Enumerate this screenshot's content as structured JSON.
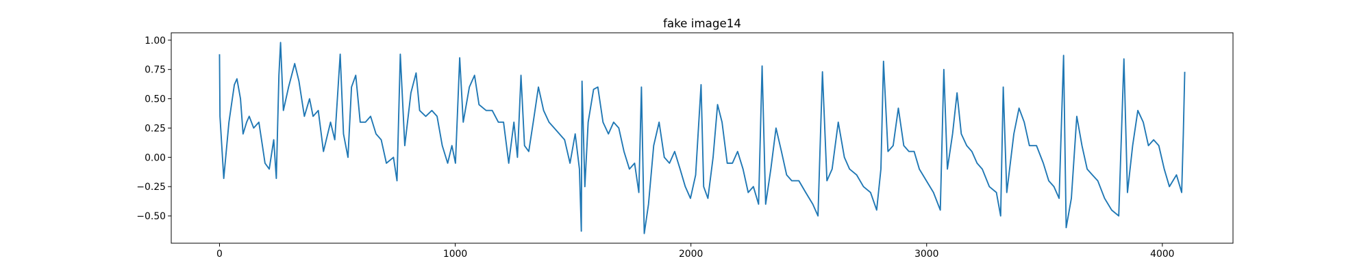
{
  "chart_data": {
    "type": "line",
    "title": "fake image14",
    "color": "#1f77b4",
    "x": [
      0,
      2,
      18,
      40,
      63,
      74,
      89,
      100,
      115,
      126,
      145,
      167,
      182,
      193,
      211,
      230,
      241,
      252,
      259,
      271,
      293,
      319,
      337,
      360,
      382,
      397,
      419,
      441,
      471,
      489,
      512,
      526,
      545,
      560,
      578,
      597,
      619,
      641,
      664,
      686,
      708,
      738,
      753,
      767,
      786,
      812,
      834,
      849,
      875,
      901,
      923,
      945,
      968,
      986,
      1001,
      1019,
      1034,
      1060,
      1082,
      1101,
      1131,
      1157,
      1183,
      1205,
      1227,
      1249,
      1264,
      1279,
      1294,
      1312,
      1331,
      1353,
      1375,
      1398,
      1420,
      1442,
      1464,
      1487,
      1509,
      1527,
      1535,
      1538,
      1550,
      1564,
      1587,
      1605,
      1627,
      1650,
      1672,
      1694,
      1716,
      1739,
      1761,
      1779,
      1790,
      1802,
      1820,
      1842,
      1865,
      1887,
      1909,
      1931,
      1954,
      1976,
      1998,
      2020,
      2043,
      2054,
      2072,
      2094,
      2113,
      2132,
      2154,
      2176,
      2198,
      2221,
      2243,
      2265,
      2287,
      2302,
      2317,
      2339,
      2361,
      2384,
      2406,
      2428,
      2458,
      2487,
      2517,
      2539,
      2558,
      2577,
      2599,
      2625,
      2651,
      2673,
      2703,
      2732,
      2762,
      2788,
      2806,
      2817,
      2836,
      2858,
      2880,
      2903,
      2925,
      2947,
      2969,
      2999,
      3029,
      3058,
      3073,
      3088,
      3110,
      3129,
      3147,
      3170,
      3192,
      3214,
      3236,
      3266,
      3296,
      3314,
      3325,
      3340,
      3370,
      3392,
      3414,
      3436,
      3466,
      3495,
      3518,
      3540,
      3562,
      3581,
      3592,
      3614,
      3637,
      3659,
      3681,
      3703,
      3726,
      3755,
      3785,
      3815,
      3837,
      3852,
      3874,
      3896,
      3919,
      3941,
      3963,
      3985,
      4008,
      4030,
      4060,
      4082,
      4089,
      4095
    ],
    "values": [
      0.88,
      0.35,
      -0.18,
      0.3,
      0.62,
      0.67,
      0.5,
      0.2,
      0.3,
      0.35,
      0.25,
      0.3,
      0.1,
      -0.05,
      -0.1,
      0.15,
      -0.18,
      0.7,
      0.98,
      0.4,
      0.6,
      0.8,
      0.65,
      0.35,
      0.5,
      0.35,
      0.4,
      0.05,
      0.3,
      0.15,
      0.88,
      0.2,
      0.0,
      0.6,
      0.7,
      0.3,
      0.3,
      0.35,
      0.2,
      0.15,
      -0.05,
      0.0,
      -0.2,
      0.88,
      0.1,
      0.55,
      0.72,
      0.4,
      0.35,
      0.4,
      0.35,
      0.1,
      -0.05,
      0.1,
      -0.05,
      0.85,
      0.3,
      0.6,
      0.7,
      0.45,
      0.4,
      0.4,
      0.3,
      0.3,
      -0.05,
      0.3,
      0.0,
      0.7,
      0.1,
      0.05,
      0.3,
      0.6,
      0.4,
      0.3,
      0.25,
      0.2,
      0.15,
      -0.05,
      0.2,
      -0.1,
      -0.63,
      0.65,
      -0.25,
      0.3,
      0.58,
      0.6,
      0.3,
      0.2,
      0.3,
      0.25,
      0.05,
      -0.1,
      -0.05,
      -0.3,
      0.6,
      -0.65,
      -0.4,
      0.1,
      0.3,
      0.0,
      -0.05,
      0.05,
      -0.1,
      -0.25,
      -0.35,
      -0.15,
      0.62,
      -0.25,
      -0.35,
      0.0,
      0.45,
      0.3,
      -0.05,
      -0.05,
      0.05,
      -0.1,
      -0.3,
      -0.25,
      -0.4,
      0.78,
      -0.4,
      -0.1,
      0.25,
      0.05,
      -0.15,
      -0.2,
      -0.2,
      -0.3,
      -0.4,
      -0.5,
      0.73,
      -0.2,
      -0.1,
      0.3,
      0.0,
      -0.1,
      -0.15,
      -0.25,
      -0.3,
      -0.45,
      -0.1,
      0.82,
      0.05,
      0.1,
      0.42,
      0.1,
      0.05,
      0.05,
      -0.1,
      -0.2,
      -0.3,
      -0.45,
      0.75,
      -0.1,
      0.2,
      0.55,
      0.2,
      0.1,
      0.05,
      -0.05,
      -0.1,
      -0.25,
      -0.3,
      -0.5,
      0.6,
      -0.3,
      0.2,
      0.42,
      0.3,
      0.1,
      0.1,
      -0.05,
      -0.2,
      -0.25,
      -0.35,
      0.87,
      -0.6,
      -0.35,
      0.35,
      0.1,
      -0.1,
      -0.15,
      -0.2,
      -0.35,
      -0.45,
      -0.5,
      0.84,
      -0.3,
      0.1,
      0.4,
      0.3,
      0.1,
      0.15,
      0.1,
      -0.1,
      -0.25,
      -0.15,
      -0.3,
      0.2,
      0.73
    ],
    "xlim": [
      -204.75,
      4299.75
    ],
    "ylim": [
      -0.733,
      1.063
    ],
    "xticks": [
      0,
      1000,
      2000,
      3000,
      4000
    ],
    "yticks": [
      {
        "value": -0.5,
        "label": "−0.50"
      },
      {
        "value": -0.25,
        "label": "−0.25"
      },
      {
        "value": 0,
        "label": "0.00"
      },
      {
        "value": 0.25,
        "label": "0.25"
      },
      {
        "value": 0.5,
        "label": "0.50"
      },
      {
        "value": 0.75,
        "label": "0.75"
      },
      {
        "value": 1.0,
        "label": "1.00"
      }
    ]
  }
}
